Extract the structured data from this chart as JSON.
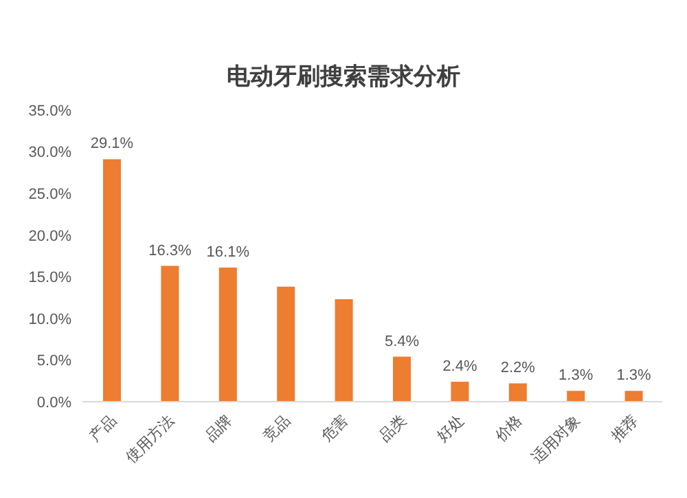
{
  "chart_data": {
    "type": "bar",
    "title": "电动牙刷搜索需求分析",
    "categories": [
      "产品",
      "使用方法",
      "品牌",
      "竞品",
      "危害",
      "品类",
      "好处",
      "价格",
      "适用对象",
      "推荐"
    ],
    "values": [
      29.1,
      16.3,
      16.1,
      13.8,
      12.3,
      5.4,
      2.4,
      2.2,
      1.3,
      1.3
    ],
    "value_labels": [
      "29.1%",
      "16.3%",
      "16.1%",
      null,
      null,
      "5.4%",
      "2.4%",
      "2.2%",
      "1.3%",
      "1.3%"
    ],
    "color": "#ed7d31",
    "ylim": [
      0,
      35
    ],
    "yticks": [
      {
        "value": 0,
        "label": "0.0%"
      },
      {
        "value": 5,
        "label": "5.0%"
      },
      {
        "value": 10,
        "label": "10.0%"
      },
      {
        "value": 15,
        "label": "15.0%"
      },
      {
        "value": 20,
        "label": "20.0%"
      },
      {
        "value": 25,
        "label": "25.0%"
      },
      {
        "value": 30,
        "label": "30.0%"
      },
      {
        "value": 35,
        "label": "35.0%"
      }
    ],
    "grid": false,
    "legend": false
  }
}
